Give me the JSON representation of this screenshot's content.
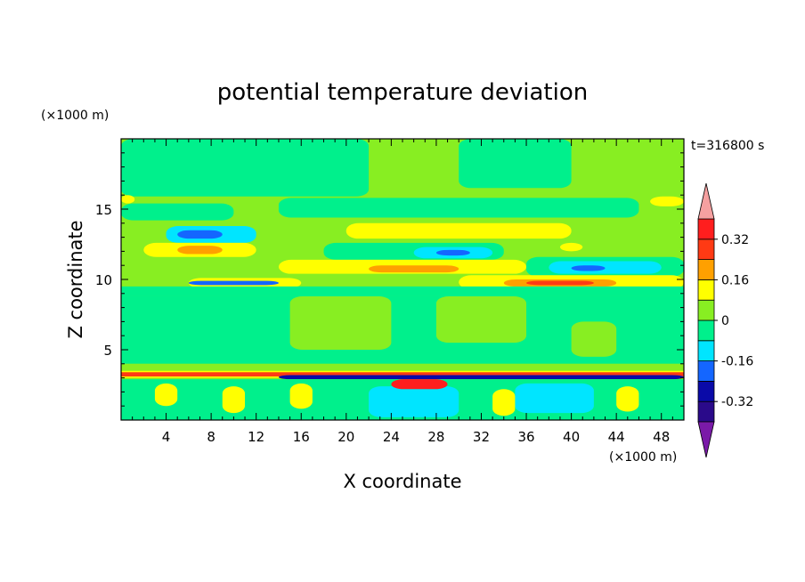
{
  "chart_data": {
    "type": "heatmap",
    "title": "potential temperature deviation",
    "time_label": "t=316800 s",
    "xlabel": "X coordinate",
    "ylabel": "Z coordinate",
    "x_unit": "(×1000 m)",
    "y_unit": "(×1000 m)",
    "xlim": [
      0,
      50
    ],
    "ylim": [
      0,
      20
    ],
    "x_ticks": [
      "4",
      "8",
      "12",
      "16",
      "20",
      "24",
      "28",
      "32",
      "36",
      "40",
      "44",
      "48"
    ],
    "x_tick_values": [
      4,
      8,
      12,
      16,
      20,
      24,
      28,
      32,
      36,
      40,
      44,
      48
    ],
    "y_ticks": [
      "5",
      "10",
      "15"
    ],
    "y_tick_values": [
      5,
      10,
      15
    ],
    "colorbar": {
      "levels": [
        -0.4,
        -0.32,
        -0.24,
        -0.16,
        -0.08,
        0,
        0.08,
        0.16,
        0.24,
        0.32,
        0.4
      ],
      "colors": [
        "#2a0a8a",
        "#0a0aa8",
        "#1466ff",
        "#00e5ff",
        "#00f08c",
        "#88ee22",
        "#ffff00",
        "#ffa000",
        "#ff3a14",
        "#ff1e1e"
      ],
      "under_color": "#7a1aa8",
      "over_color": "#f5a0a0",
      "tick_labels": [
        "0.32",
        "0.16",
        "0",
        "-0.16",
        "-0.32"
      ],
      "tick_values": [
        0.32,
        0.16,
        0,
        -0.16,
        -0.32
      ]
    },
    "bands": [
      {
        "z0": 0,
        "z1": 20,
        "x0": 0,
        "x1": 50,
        "level": "0~0.08",
        "color": "#88ee22"
      },
      {
        "z0": 15.9,
        "z1": 20,
        "x0": 0,
        "x1": 22,
        "level": "-0.08~0",
        "color": "#00f08c"
      },
      {
        "z0": 16.5,
        "z1": 20,
        "x0": 30,
        "x1": 40,
        "level": "-0.08~0",
        "color": "#00f08c"
      },
      {
        "z0": 14.2,
        "z1": 15.4,
        "x0": 0,
        "x1": 10,
        "level": "-0.08~0",
        "color": "#00f08c"
      },
      {
        "z0": 14.4,
        "z1": 15.8,
        "x0": 14,
        "x1": 46,
        "level": "-0.08~0",
        "color": "#00f08c"
      },
      {
        "z0": 15.4,
        "z1": 16.0,
        "x0": 0,
        "x1": 1.2,
        "level": "0.08~0.16",
        "color": "#ffff00"
      },
      {
        "z0": 15.2,
        "z1": 15.9,
        "x0": 47,
        "x1": 50,
        "level": "0.08~0.16",
        "color": "#ffff00"
      },
      {
        "z0": 12.6,
        "z1": 13.8,
        "x0": 4,
        "x1": 12,
        "level": "-0.16~-0.08",
        "color": "#00e5ff"
      },
      {
        "z0": 12.9,
        "z1": 13.5,
        "x0": 5,
        "x1": 9,
        "level": "-0.24~-0.16",
        "color": "#1466ff"
      },
      {
        "z0": 11.6,
        "z1": 12.6,
        "x0": 2,
        "x1": 12,
        "level": "0.08~0.16",
        "color": "#ffff00"
      },
      {
        "z0": 11.8,
        "z1": 12.4,
        "x0": 5,
        "x1": 9,
        "level": "0.16~0.24",
        "color": "#ffa000"
      },
      {
        "z0": 12.9,
        "z1": 14.0,
        "x0": 20,
        "x1": 40,
        "level": "0.08~0.16",
        "color": "#ffff00"
      },
      {
        "z0": 11.4,
        "z1": 12.6,
        "x0": 18,
        "x1": 34,
        "level": "-0.08~0",
        "color": "#00f08c"
      },
      {
        "z0": 11.5,
        "z1": 12.3,
        "x0": 26,
        "x1": 33,
        "level": "-0.16~-0.08",
        "color": "#00e5ff"
      },
      {
        "z0": 11.7,
        "z1": 12.1,
        "x0": 28,
        "x1": 31,
        "level": "-0.24~-0.16",
        "color": "#1466ff"
      },
      {
        "z0": 12.0,
        "z1": 12.6,
        "x0": 39,
        "x1": 41,
        "level": "0.08~0.16",
        "color": "#ffff00"
      },
      {
        "z0": 10.4,
        "z1": 11.4,
        "x0": 14,
        "x1": 36,
        "level": "0.08~0.16",
        "color": "#ffff00"
      },
      {
        "z0": 10.5,
        "z1": 11.0,
        "x0": 22,
        "x1": 30,
        "level": "0.16~0.24",
        "color": "#ffa000"
      },
      {
        "z0": 10.2,
        "z1": 11.6,
        "x0": 36,
        "x1": 50,
        "level": "-0.08~0",
        "color": "#00f08c"
      },
      {
        "z0": 10.4,
        "z1": 11.3,
        "x0": 38,
        "x1": 48,
        "level": "-0.16~-0.08",
        "color": "#00e5ff"
      },
      {
        "z0": 10.6,
        "z1": 11.0,
        "x0": 40,
        "x1": 43,
        "level": "-0.24~-0.16",
        "color": "#1466ff"
      },
      {
        "z0": 9.3,
        "z1": 10.3,
        "x0": 30,
        "x1": 50,
        "level": "0.08~0.16",
        "color": "#ffff00"
      },
      {
        "z0": 9.5,
        "z1": 10.0,
        "x0": 34,
        "x1": 44,
        "level": "0.16~0.24",
        "color": "#ffa000"
      },
      {
        "z0": 9.6,
        "z1": 9.9,
        "x0": 36,
        "x1": 42,
        "level": "0.24~0.32",
        "color": "#ff3a14"
      },
      {
        "z0": 9.4,
        "z1": 10.1,
        "x0": 6,
        "x1": 16,
        "level": "0.08~0.16",
        "color": "#ffff00"
      },
      {
        "z0": 9.6,
        "z1": 9.9,
        "x0": 6,
        "x1": 14,
        "level": "-0.24~-0.16",
        "color": "#1466ff"
      },
      {
        "z0": 8.8,
        "z1": 9.5,
        "x0": 0,
        "x1": 50,
        "level": "-0.08~0",
        "color": "#00f08c"
      },
      {
        "z0": 4.0,
        "z1": 8.8,
        "x0": 0,
        "x1": 50,
        "level": "-0.08~0",
        "color": "#00f08c"
      },
      {
        "z0": 5.0,
        "z1": 8.8,
        "x0": 15,
        "x1": 24,
        "level": "0~0.08",
        "color": "#88ee22"
      },
      {
        "z0": 5.5,
        "z1": 8.8,
        "x0": 28,
        "x1": 36,
        "level": "0~0.08",
        "color": "#88ee22"
      },
      {
        "z0": 4.5,
        "z1": 7.0,
        "x0": 40,
        "x1": 44,
        "level": "0~0.08",
        "color": "#88ee22"
      },
      {
        "z0": 3.4,
        "z1": 4.0,
        "x0": 0,
        "x1": 50,
        "level": "0~0.08",
        "color": "#88ee22"
      },
      {
        "z0": 3.0,
        "z1": 3.5,
        "x0": 0,
        "x1": 50,
        "level": "0.08~0.16",
        "color": "#ffff00"
      },
      {
        "z0": 3.1,
        "z1": 3.4,
        "x0": 0,
        "x1": 50,
        "level": "0.24~0.32",
        "color": "#ff3a14"
      },
      {
        "z0": 2.9,
        "z1": 3.2,
        "x0": 14,
        "x1": 50,
        "level": "-0.32~-0.24",
        "color": "#0a0aa8"
      },
      {
        "z0": 0,
        "z1": 2.9,
        "x0": 0,
        "x1": 50,
        "level": "-0.08~0",
        "color": "#00f08c"
      },
      {
        "z0": 0.2,
        "z1": 2.4,
        "x0": 22,
        "x1": 30,
        "level": "-0.16~-0.08",
        "color": "#00e5ff"
      },
      {
        "z0": 0.5,
        "z1": 2.6,
        "x0": 35,
        "x1": 42,
        "level": "-0.16~-0.08",
        "color": "#00e5ff"
      },
      {
        "z0": 2.2,
        "z1": 2.9,
        "x0": 24,
        "x1": 29,
        "level": "0.32~0.4",
        "color": "#ff1e1e"
      },
      {
        "z0": 1.0,
        "z1": 2.6,
        "x0": 3,
        "x1": 5,
        "level": "0.08~0.16",
        "color": "#ffff00"
      },
      {
        "z0": 0.5,
        "z1": 2.4,
        "x0": 9,
        "x1": 11,
        "level": "0.08~0.16",
        "color": "#ffff00"
      },
      {
        "z0": 0.8,
        "z1": 2.6,
        "x0": 15,
        "x1": 17,
        "level": "0.08~0.16",
        "color": "#ffff00"
      },
      {
        "z0": 0.3,
        "z1": 2.2,
        "x0": 33,
        "x1": 35,
        "level": "0.08~0.16",
        "color": "#ffff00"
      },
      {
        "z0": 0.6,
        "z1": 2.4,
        "x0": 44,
        "x1": 46,
        "level": "0.08~0.16",
        "color": "#ffff00"
      }
    ]
  }
}
